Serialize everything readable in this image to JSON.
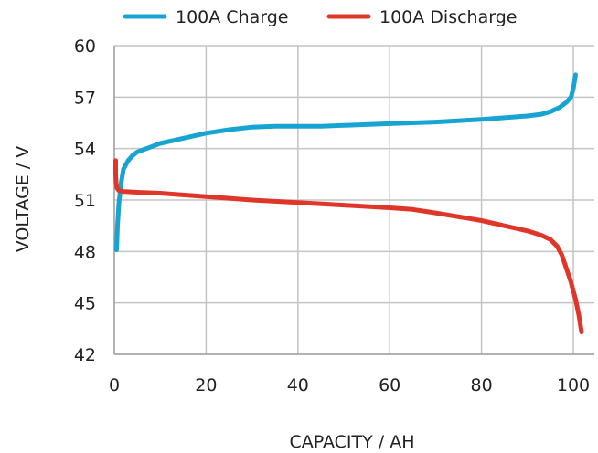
{
  "chart_data": {
    "type": "line",
    "xlabel": "CAPACITY / AH",
    "ylabel": "VOLTAGE / V",
    "xlim": [
      0,
      105
    ],
    "ylim": [
      42,
      60
    ],
    "xticks": [
      0,
      20,
      40,
      60,
      80,
      100
    ],
    "yticks": [
      42,
      45,
      48,
      51,
      54,
      57,
      60
    ],
    "grid": true,
    "legend": "top",
    "series": [
      {
        "name": "100A Charge",
        "color": "#18a4d2",
        "x": [
          0.5,
          0.7,
          1,
          1.5,
          2,
          3,
          4,
          5,
          6,
          8,
          10,
          15,
          20,
          25,
          30,
          35,
          40,
          45,
          50,
          60,
          70,
          80,
          85,
          90,
          93,
          95,
          97,
          98.5,
          99.5,
          100,
          100.5
        ],
        "y": [
          48.1,
          49.5,
          50.8,
          52,
          52.8,
          53.3,
          53.6,
          53.8,
          53.9,
          54.1,
          54.3,
          54.6,
          54.9,
          55.1,
          55.25,
          55.3,
          55.3,
          55.3,
          55.35,
          55.45,
          55.55,
          55.7,
          55.8,
          55.9,
          56.0,
          56.15,
          56.4,
          56.7,
          57.0,
          57.5,
          58.3
        ]
      },
      {
        "name": "100A Discharge",
        "color": "#e0362a",
        "x": [
          0.3,
          0.3,
          0.4,
          0.6,
          1,
          2,
          5,
          10,
          20,
          30,
          40,
          50,
          60,
          65,
          70,
          80,
          85,
          90,
          93,
          95,
          96.5,
          97.5,
          98.5,
          99.5,
          100.5,
          101.2,
          101.8
        ],
        "y": [
          53.3,
          52.5,
          52,
          51.7,
          51.55,
          51.5,
          51.45,
          51.4,
          51.2,
          51.0,
          50.85,
          50.7,
          50.55,
          50.45,
          50.25,
          49.8,
          49.5,
          49.2,
          48.95,
          48.7,
          48.3,
          47.8,
          47.0,
          46.2,
          45.2,
          44.3,
          43.3
        ]
      }
    ]
  }
}
